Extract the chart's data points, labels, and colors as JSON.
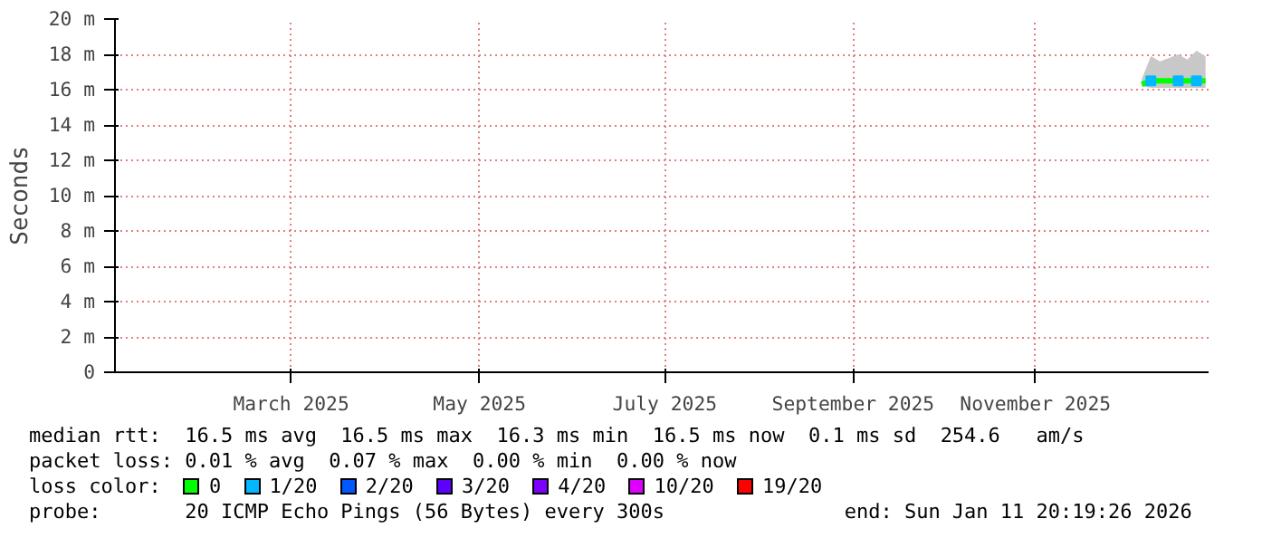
{
  "chart_data": {
    "type": "line",
    "ylabel": "Seconds",
    "legend_title": "loss color:",
    "x": [
      "2025-12-20",
      "2025-12-23",
      "2025-12-26",
      "2025-12-29",
      "2026-01-01",
      "2026-01-04",
      "2026-01-07",
      "2026-01-10"
    ],
    "series": [
      {
        "name": "0",
        "color": "#00ff00",
        "values": [
          16.3,
          16.5,
          16.5,
          16.5,
          16.5,
          16.5,
          16.5,
          16.5
        ],
        "lower": [
          16.2,
          16.1,
          16.1,
          16.1,
          16.1,
          16.1,
          16.1,
          16.1
        ],
        "upper": [
          16.6,
          17.9,
          17.6,
          17.8,
          18.0,
          17.7,
          18.2,
          17.9
        ]
      },
      {
        "name": "1/20",
        "type": "scatter",
        "marker": "square",
        "color": "#00b8ff",
        "values": [
          null,
          16.5,
          null,
          null,
          16.5,
          null,
          16.5,
          null
        ]
      },
      {
        "name": "2/20",
        "color": "#0059ff",
        "values": [
          null,
          null,
          null,
          null,
          null,
          null,
          null,
          null
        ]
      },
      {
        "name": "3/20",
        "color": "#5e00ff",
        "values": [
          null,
          null,
          null,
          null,
          null,
          null,
          null,
          null
        ]
      },
      {
        "name": "4/20",
        "color": "#7e00ff",
        "values": [
          null,
          null,
          null,
          null,
          null,
          null,
          null,
          null
        ]
      },
      {
        "name": "10/20",
        "color": "#dd00ff",
        "values": [
          null,
          null,
          null,
          null,
          null,
          null,
          null,
          null
        ]
      },
      {
        "name": "19/20",
        "color": "#ff0000",
        "values": [
          null,
          null,
          null,
          null,
          null,
          null,
          null,
          null
        ]
      }
    ],
    "xlim": [
      "2025-01-16",
      "2026-01-11"
    ],
    "xticks": [
      {
        "value": "2025-03-15",
        "label": "March 2025"
      },
      {
        "value": "2025-05-16",
        "label": "May 2025"
      },
      {
        "value": "2025-07-16",
        "label": "July 2025"
      },
      {
        "value": "2025-09-16",
        "label": "September 2025"
      },
      {
        "value": "2025-11-15",
        "label": "November 2025"
      }
    ],
    "ylim": [
      0,
      20
    ],
    "yticks": [
      {
        "value": 0,
        "label": "0"
      },
      {
        "value": 2,
        "label": "2 m"
      },
      {
        "value": 4,
        "label": "4 m"
      },
      {
        "value": 6,
        "label": "6 m"
      },
      {
        "value": 8,
        "label": "8 m"
      },
      {
        "value": 10,
        "label": "10 m"
      },
      {
        "value": 12,
        "label": "12 m"
      },
      {
        "value": 14,
        "label": "14 m"
      },
      {
        "value": 16,
        "label": "16 m"
      },
      {
        "value": 18,
        "label": "18 m"
      },
      {
        "value": 20,
        "label": "20 m"
      }
    ],
    "grid": true,
    "legend": "bottom",
    "annotations": [
      "median rtt:  16.5 ms avg  16.5 ms max  16.3 ms min  16.5 ms now  0.1 ms sd  254.6   am/s",
      "packet loss: 0.01 % avg  0.07 % max  0.00 % min  0.00 % now",
      "probe:       20 ICMP Echo Pings (56 Bytes) every 300s               end: Sun Jan 11 20:19:26 2026"
    ]
  }
}
